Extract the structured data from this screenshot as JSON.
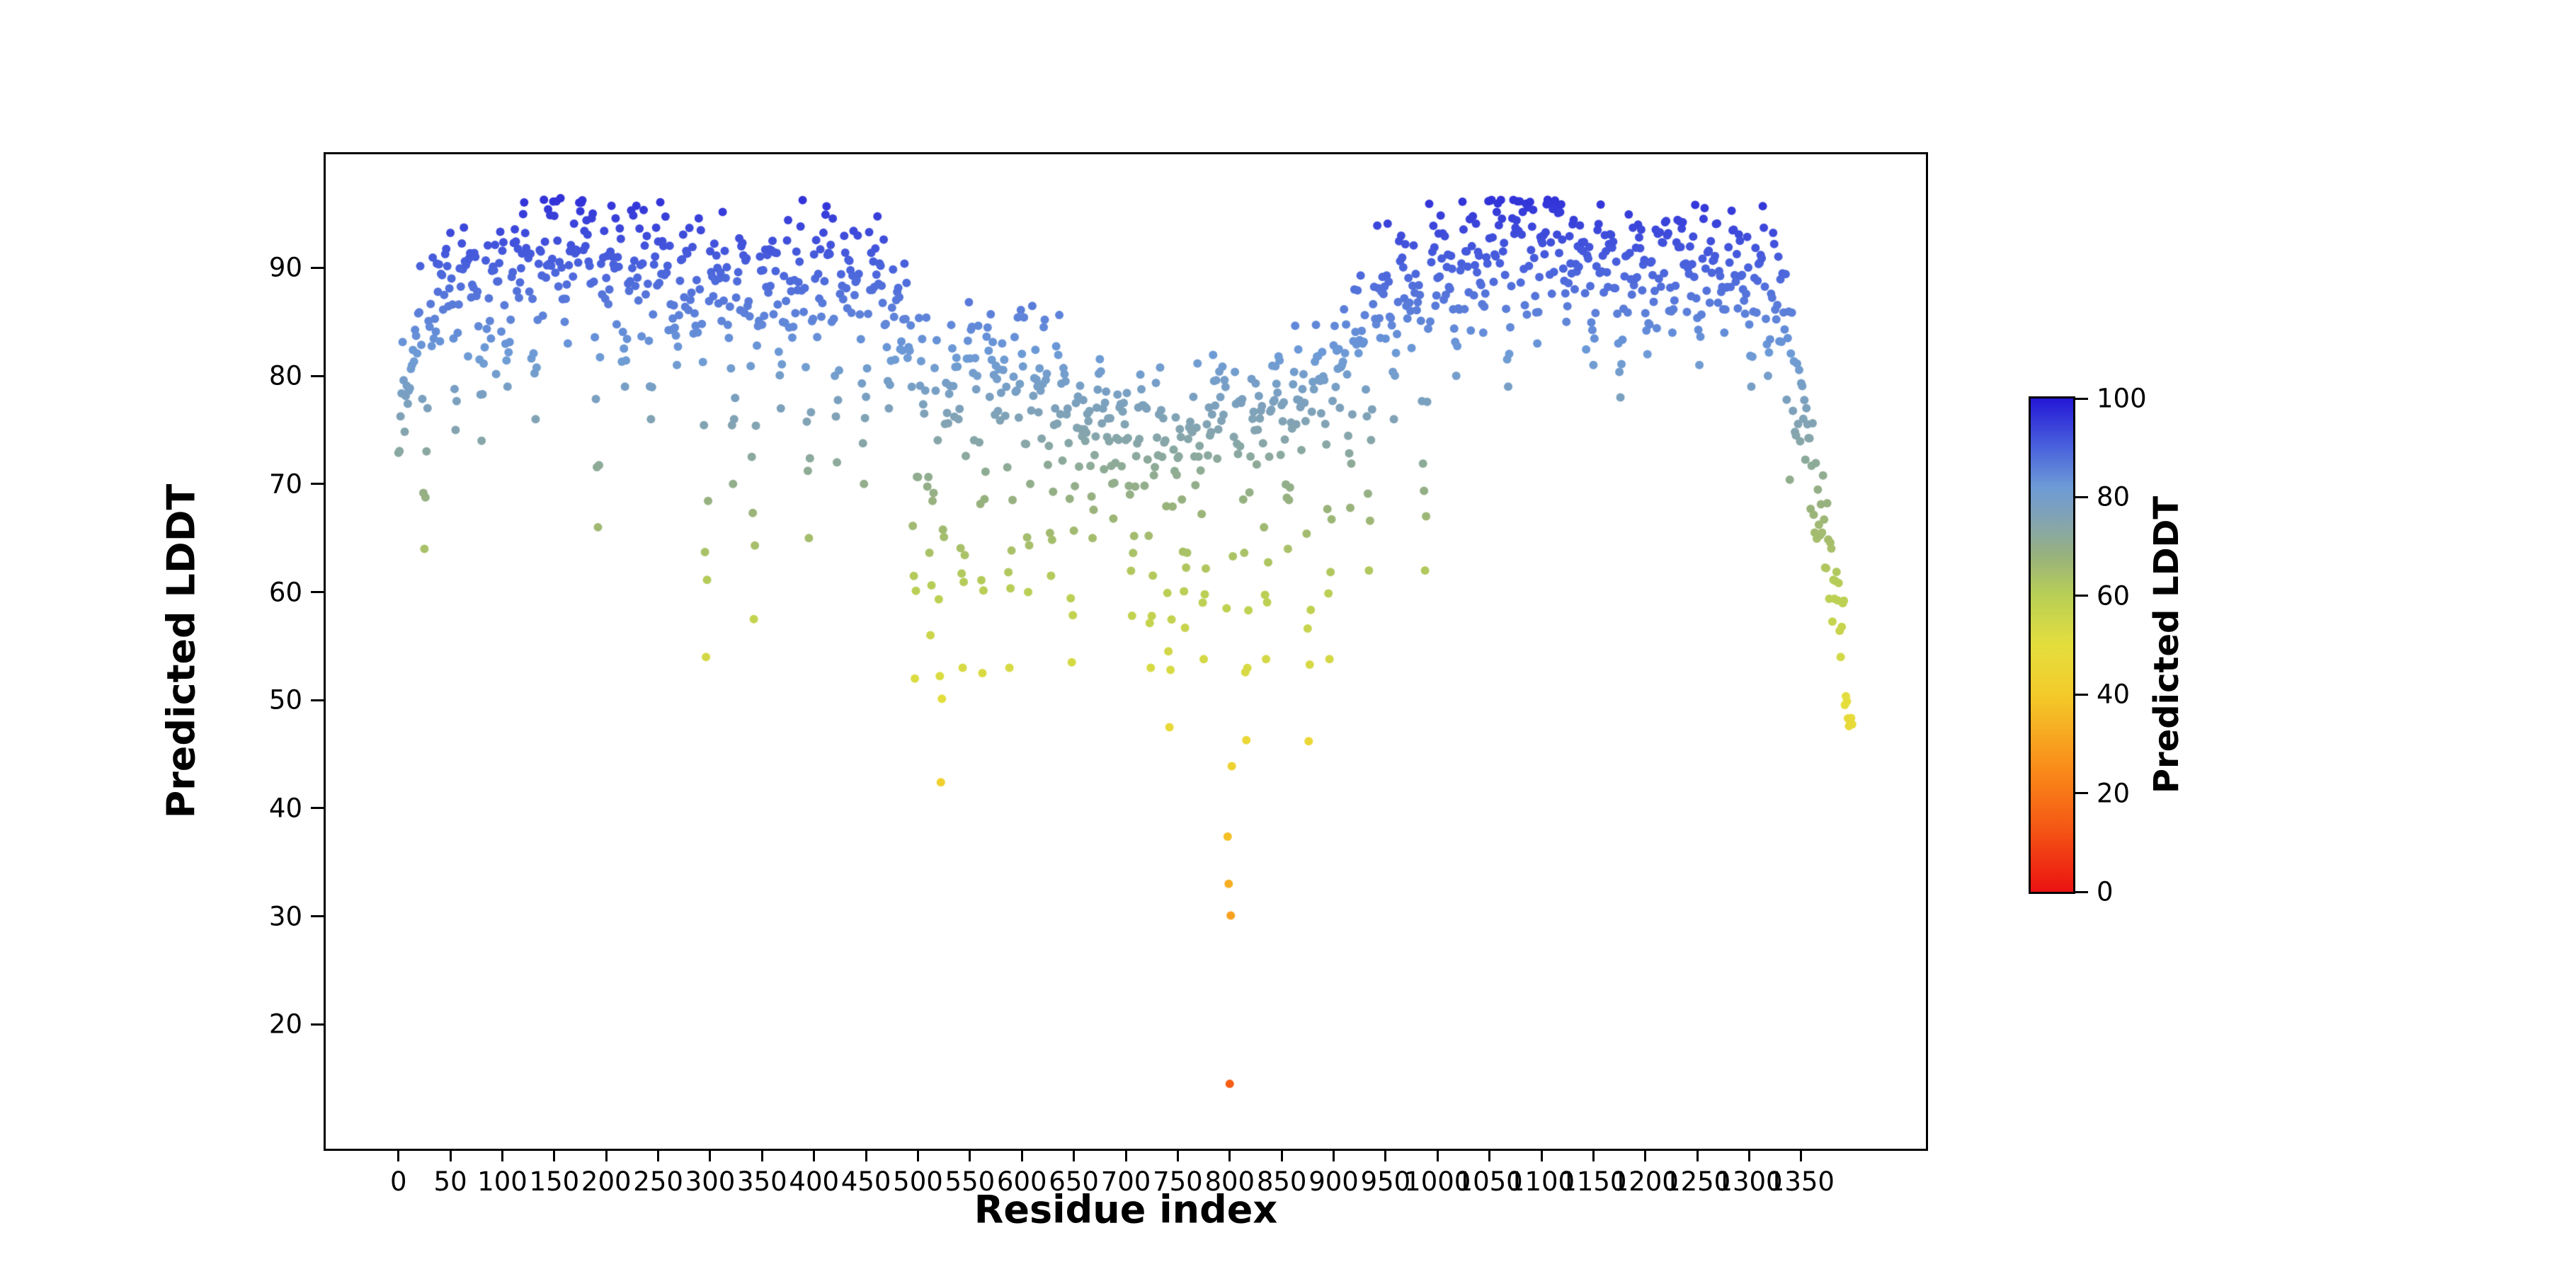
{
  "figure": {
    "background": "#ffffff"
  },
  "chart_data": {
    "type": "scatter",
    "title": "",
    "xlabel": "Residue index",
    "ylabel": "Predicted LDDT",
    "xlim": [
      -70,
      1470
    ],
    "ylim": [
      8.5,
      100.5
    ],
    "x_ticks": [
      0,
      50,
      100,
      150,
      200,
      250,
      300,
      350,
      400,
      450,
      500,
      550,
      600,
      650,
      700,
      750,
      800,
      850,
      900,
      950,
      1000,
      1050,
      1100,
      1150,
      1200,
      1250,
      1300,
      1350
    ],
    "y_ticks": [
      20,
      30,
      40,
      50,
      60,
      70,
      80,
      90
    ],
    "grid": false,
    "legend": "none",
    "n_residues": 1400,
    "marker_radius": 6,
    "seed": 12,
    "noise_sd": 2.8,
    "profile": [
      [
        0,
        76
      ],
      [
        8,
        81
      ],
      [
        20,
        85
      ],
      [
        35,
        88
      ],
      [
        50,
        89
      ],
      [
        70,
        90
      ],
      [
        90,
        89
      ],
      [
        110,
        90
      ],
      [
        130,
        91
      ],
      [
        150,
        92
      ],
      [
        170,
        93
      ],
      [
        190,
        91
      ],
      [
        210,
        91
      ],
      [
        230,
        92
      ],
      [
        250,
        91
      ],
      [
        270,
        90
      ],
      [
        290,
        90
      ],
      [
        310,
        89
      ],
      [
        330,
        90
      ],
      [
        350,
        90
      ],
      [
        370,
        90
      ],
      [
        390,
        89
      ],
      [
        410,
        90
      ],
      [
        430,
        90
      ],
      [
        450,
        90
      ],
      [
        470,
        89
      ],
      [
        485,
        86
      ],
      [
        495,
        83
      ],
      [
        510,
        81
      ],
      [
        530,
        80
      ],
      [
        550,
        82
      ],
      [
        570,
        81
      ],
      [
        590,
        82
      ],
      [
        610,
        81
      ],
      [
        630,
        80
      ],
      [
        650,
        78
      ],
      [
        670,
        77
      ],
      [
        690,
        77
      ],
      [
        710,
        76
      ],
      [
        730,
        76
      ],
      [
        750,
        75
      ],
      [
        770,
        76
      ],
      [
        790,
        77
      ],
      [
        810,
        77
      ],
      [
        830,
        78
      ],
      [
        850,
        79
      ],
      [
        870,
        79
      ],
      [
        890,
        81
      ],
      [
        910,
        83
      ],
      [
        925,
        85
      ],
      [
        940,
        87
      ],
      [
        955,
        90
      ],
      [
        970,
        89
      ],
      [
        985,
        88
      ],
      [
        1000,
        90
      ],
      [
        1015,
        91
      ],
      [
        1030,
        92
      ],
      [
        1050,
        93
      ],
      [
        1070,
        92
      ],
      [
        1090,
        93
      ],
      [
        1110,
        94
      ],
      [
        1130,
        93
      ],
      [
        1150,
        92
      ],
      [
        1170,
        91
      ],
      [
        1190,
        91
      ],
      [
        1210,
        91
      ],
      [
        1230,
        92
      ],
      [
        1250,
        91
      ],
      [
        1270,
        92
      ],
      [
        1290,
        91
      ],
      [
        1310,
        90
      ],
      [
        1325,
        88
      ],
      [
        1335,
        84
      ],
      [
        1345,
        80
      ],
      [
        1355,
        75
      ],
      [
        1365,
        69
      ],
      [
        1375,
        64
      ],
      [
        1385,
        58
      ],
      [
        1392,
        53
      ],
      [
        1399,
        49
      ]
    ],
    "dips": [
      [
        25,
        64
      ],
      [
        55,
        75
      ],
      [
        80,
        74
      ],
      [
        105,
        79
      ],
      [
        132,
        76
      ],
      [
        160,
        85
      ],
      [
        192,
        66
      ],
      [
        218,
        79
      ],
      [
        243,
        76
      ],
      [
        268,
        81
      ],
      [
        296,
        54
      ],
      [
        322,
        70
      ],
      [
        342,
        57.5
      ],
      [
        368,
        77
      ],
      [
        395,
        65
      ],
      [
        422,
        72
      ],
      [
        448,
        70
      ],
      [
        472,
        77
      ],
      [
        497,
        52
      ],
      [
        512,
        56
      ],
      [
        522,
        42.4
      ],
      [
        543,
        53
      ],
      [
        562,
        52.5
      ],
      [
        588,
        53
      ],
      [
        606,
        60
      ],
      [
        628,
        61.5
      ],
      [
        648,
        53.5
      ],
      [
        668,
        65
      ],
      [
        688,
        66.8
      ],
      [
        706,
        57.8
      ],
      [
        724,
        53
      ],
      [
        742,
        47.5
      ],
      [
        757,
        56.7
      ],
      [
        775,
        53.8
      ],
      [
        800,
        14.5
      ],
      [
        816,
        46.3
      ],
      [
        835,
        53.8
      ],
      [
        856,
        64
      ],
      [
        876,
        46.2
      ],
      [
        896,
        53.8
      ],
      [
        916,
        67.8
      ],
      [
        934,
        62
      ],
      [
        958,
        76
      ],
      [
        988,
        62
      ],
      [
        1018,
        80
      ],
      [
        1044,
        84
      ],
      [
        1068,
        79
      ],
      [
        1096,
        83
      ],
      [
        1124,
        85
      ],
      [
        1150,
        81
      ],
      [
        1176,
        78
      ],
      [
        1202,
        82
      ],
      [
        1226,
        84
      ],
      [
        1252,
        81
      ],
      [
        1276,
        84
      ],
      [
        1302,
        79
      ],
      [
        1318,
        80
      ],
      [
        1396,
        47.6
      ]
    ],
    "colormap": {
      "vmin": 0,
      "vmax": 100,
      "stops": [
        [
          0.0,
          "#eb1212"
        ],
        [
          0.14,
          "#f55c14"
        ],
        [
          0.25,
          "#fa8c1a"
        ],
        [
          0.4,
          "#f3cb2a"
        ],
        [
          0.5,
          "#e4de3d"
        ],
        [
          0.6,
          "#b9cf55"
        ],
        [
          0.68,
          "#98b27c"
        ],
        [
          0.75,
          "#84a4b0"
        ],
        [
          0.82,
          "#6d9bd6"
        ],
        [
          0.9,
          "#4a63dc"
        ],
        [
          1.0,
          "#2417d6"
        ]
      ]
    },
    "colorbar": {
      "label": "Predicted LDDT",
      "ticks": [
        0,
        20,
        40,
        60,
        80,
        100
      ]
    },
    "axis_color": "#000000"
  }
}
